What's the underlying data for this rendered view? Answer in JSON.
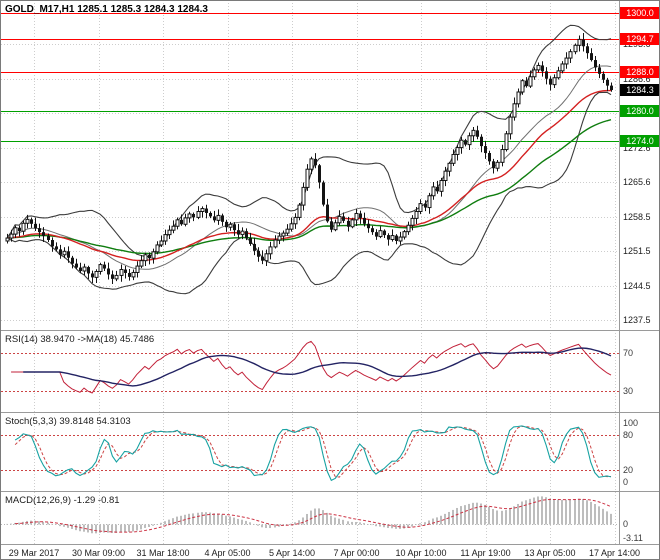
{
  "colors": {
    "background": "#ffffff",
    "grid": "#cdcdcd",
    "separator": "#9a9a9a",
    "candle": "#141414",
    "bollinger": "#3c3c3c",
    "bollinger_mid": "#707070",
    "ma_fast_red": "#d42020",
    "ma_slow_green": "#0f7d0f",
    "level_red": "#ff0000",
    "level_green": "#00a000",
    "current_price_badge": "#000000",
    "rsi_line": "#c2223a",
    "rsi_ma_line": "#232363",
    "indicator_level_red": "#cc4444",
    "stoch_main": "#17a2a2",
    "stoch_signal": "#cc4444",
    "macd_histogram": "#bdbdbd",
    "macd_signal": "#cc3344",
    "axis_text": "#1c1c1c"
  },
  "chart_data": {
    "type": "candlestick",
    "title": "GOLD_M17,H1 1285.1 1285.3 1284.3 1284.3",
    "symbol": "GOLD_M17",
    "timeframe": "H1",
    "current_bar": {
      "open": 1285.1,
      "high": 1285.3,
      "low": 1284.3,
      "close": 1284.3
    },
    "x_axis": {
      "labels": [
        "29 Mar 2017",
        "30 Mar 09:00",
        "31 Mar 18:00",
        "4 Apr 05:00",
        "5 Apr 14:00",
        "7 Apr 00:00",
        "10 Apr 10:00",
        "11 Apr 19:00",
        "13 Apr 05:00",
        "17 Apr 14:00"
      ]
    },
    "y_axis": {
      "labels": [
        "1293.6",
        "1286.6",
        "1279.6",
        "1272.6",
        "1265.6",
        "1258.5",
        "1251.5",
        "1244.5",
        "1237.5"
      ],
      "min": 1235.5,
      "max": 1302.0
    },
    "horizontal_levels": [
      {
        "price": 1300.0,
        "label": "1300.0",
        "color": "#ff0000"
      },
      {
        "price": 1294.7,
        "label": "1294.7",
        "color": "#ff0000"
      },
      {
        "price": 1288.0,
        "label": "1288.0",
        "color": "#ff0000"
      },
      {
        "price": 1280.0,
        "label": "1280.0",
        "color": "#00a000"
      },
      {
        "price": 1274.0,
        "label": "1274.0",
        "color": "#00a000"
      }
    ],
    "current_price": {
      "value": 1284.3,
      "label": "1284.3",
      "badge_color": "#000000"
    },
    "closes": [
      1254.2,
      1255.0,
      1256.3,
      1255.6,
      1257.2,
      1258.0,
      1257.1,
      1256.2,
      1255.4,
      1254.6,
      1253.8,
      1252.5,
      1251.9,
      1250.8,
      1251.5,
      1250.2,
      1249.0,
      1248.2,
      1247.5,
      1248.3,
      1247.0,
      1246.2,
      1247.4,
      1248.8,
      1248.0,
      1246.8,
      1245.9,
      1246.6,
      1247.8,
      1247.1,
      1246.3,
      1247.2,
      1248.5,
      1249.6,
      1250.8,
      1250.1,
      1251.4,
      1252.8,
      1253.6,
      1254.9,
      1255.8,
      1256.6,
      1257.9,
      1257.0,
      1258.3,
      1259.1,
      1258.4,
      1259.6,
      1260.2,
      1259.3,
      1258.6,
      1257.8,
      1258.8,
      1257.5,
      1256.4,
      1257.0,
      1255.8,
      1254.9,
      1255.6,
      1254.2,
      1253.0,
      1251.6,
      1250.4,
      1249.6,
      1251.0,
      1252.4,
      1253.8,
      1254.6,
      1255.2,
      1256.0,
      1257.1,
      1258.4,
      1260.9,
      1264.5,
      1268.2,
      1270.3,
      1269.0,
      1265.5,
      1261.0,
      1257.6,
      1255.9,
      1257.3,
      1258.6,
      1257.7,
      1256.5,
      1257.9,
      1259.2,
      1258.3,
      1257.1,
      1256.2,
      1255.4,
      1254.5,
      1255.7,
      1254.8,
      1253.9,
      1254.7,
      1253.6,
      1254.4,
      1255.5,
      1256.8,
      1258.2,
      1259.6,
      1261.2,
      1260.4,
      1262.8,
      1264.6,
      1263.7,
      1265.9,
      1267.8,
      1269.4,
      1271.2,
      1272.6,
      1274.1,
      1273.2,
      1275.0,
      1276.1,
      1274.8,
      1272.9,
      1271.5,
      1269.8,
      1268.4,
      1269.6,
      1272.2,
      1275.4,
      1278.8,
      1281.5,
      1283.9,
      1286.2,
      1285.1,
      1287.0,
      1288.4,
      1289.3,
      1288.1,
      1286.6,
      1285.4,
      1286.8,
      1288.2,
      1289.6,
      1290.8,
      1292.1,
      1293.4,
      1294.6,
      1293.2,
      1291.8,
      1290.4,
      1288.9,
      1287.6,
      1286.4,
      1285.2,
      1284.3
    ],
    "indicators": {
      "rsi": {
        "label": "RSI(14) 38.9470 ->MA(18) 45.7486",
        "current": 38.947,
        "ma_current": 45.7486,
        "levels": [
          70,
          30
        ],
        "axis_labels": [
          "70",
          "30"
        ]
      },
      "stochastic": {
        "label": "Stoch(5,3,3) 39.8148 54.3103",
        "current": 39.8148,
        "signal_current": 54.3103,
        "levels": [
          80,
          20
        ],
        "axis_values": [
          100,
          80,
          20,
          0
        ],
        "axis_labels": [
          "100",
          "80",
          "20",
          "0"
        ]
      },
      "macd": {
        "label": "MACD(12,26,9) -1.29 -0.81",
        "current": -1.29,
        "signal_current": -0.81,
        "axis_values": [
          0,
          -3.11
        ],
        "axis_labels": [
          "0",
          "-3.11"
        ]
      }
    }
  }
}
